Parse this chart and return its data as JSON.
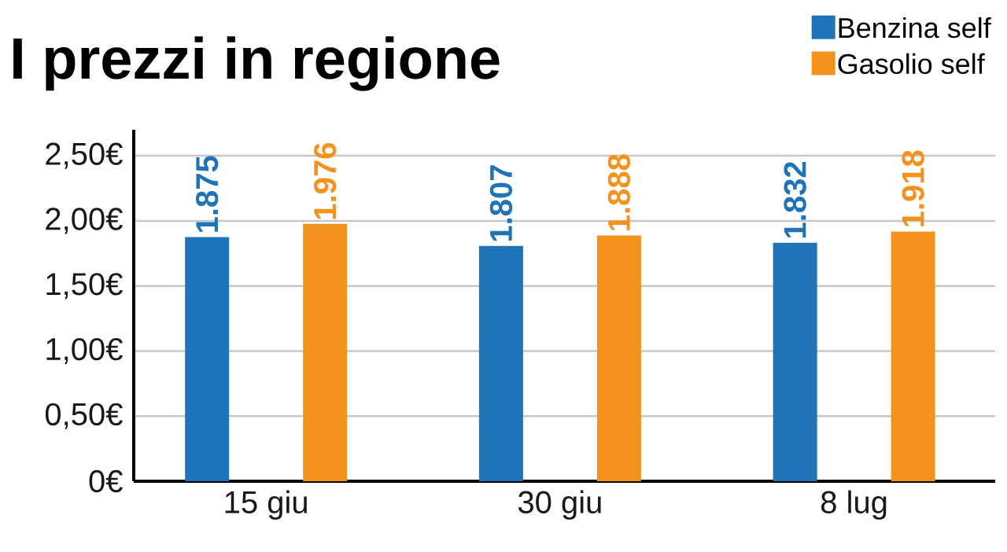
{
  "chart_data": {
    "type": "bar",
    "title": "I prezzi in regione",
    "categories": [
      "15 giu",
      "30 giu",
      "8 lug"
    ],
    "series": [
      {
        "name": "Benzina self",
        "color": "#1f73b7",
        "values": [
          1.875,
          1.807,
          1.832
        ]
      },
      {
        "name": "Gasolio self",
        "color": "#f5921e",
        "values": [
          1.976,
          1.888,
          1.918
        ]
      }
    ],
    "ylim": [
      0,
      2.7
    ],
    "yticks": [
      {
        "value": 0,
        "label": "0€"
      },
      {
        "value": 0.5,
        "label": "0,50€"
      },
      {
        "value": 1,
        "label": "1,00€"
      },
      {
        "value": 1.5,
        "label": "1,50€"
      },
      {
        "value": 2,
        "label": "2,00€"
      },
      {
        "value": 2.5,
        "label": "2,50€"
      }
    ],
    "grid": "y",
    "legend": "top right",
    "data_labels": true
  }
}
